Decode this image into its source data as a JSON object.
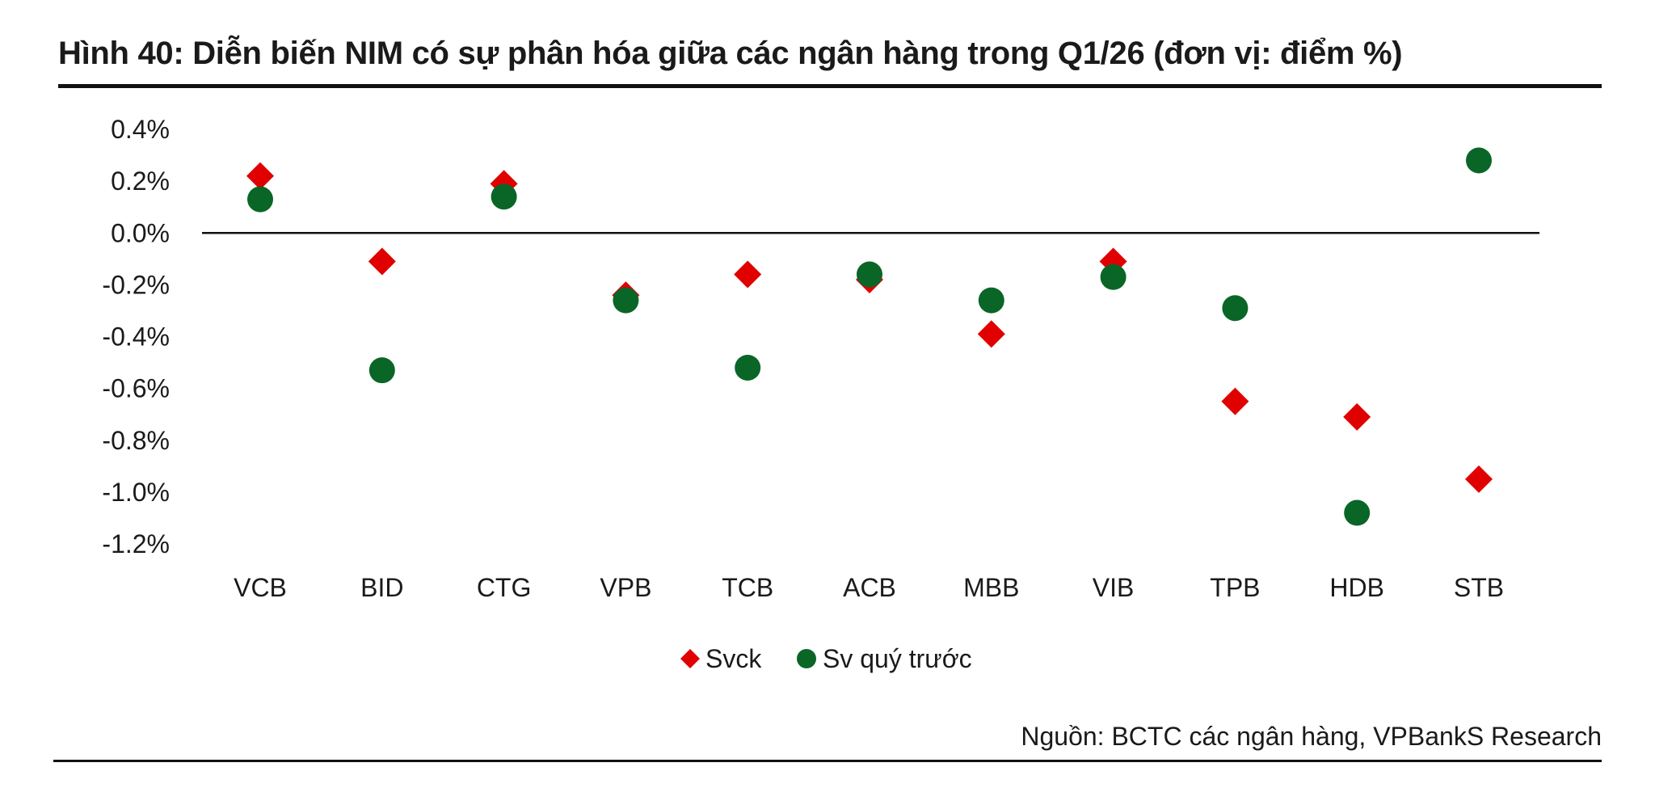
{
  "figure": {
    "title": "Hình 40: Diễn biến NIM có sự phân hóa giữa các ngân hàng trong Q1/26 (đơn vị: điểm %)",
    "source": "Nguồn: BCTC các ngân hàng, VPBankS Research"
  },
  "chart_data": {
    "type": "scatter",
    "title": "Hình 40: Diễn biến NIM có sự phân hóa giữa các ngân hàng trong Q1/26 (đơn vị: điểm %)",
    "xlabel": "",
    "ylabel": "",
    "ylim": [
      -1.2,
      0.4
    ],
    "yticks": [
      0.4,
      0.2,
      0.0,
      -0.2,
      -0.4,
      -0.6,
      -0.8,
      -1.0,
      -1.2
    ],
    "ytick_labels": [
      "0.4%",
      "0.2%",
      "0.0%",
      "-0.2%",
      "-0.4%",
      "-0.6%",
      "-0.8%",
      "-1.0%",
      "-1.2%"
    ],
    "categories": [
      "VCB",
      "BID",
      "CTG",
      "VPB",
      "TCB",
      "ACB",
      "MBB",
      "VIB",
      "TPB",
      "HDB",
      "STB"
    ],
    "grid": false,
    "legend_position": "bottom-center",
    "series": [
      {
        "name": "Svck",
        "marker": "diamond",
        "color": "#e00000",
        "values": [
          0.22,
          -0.11,
          0.19,
          -0.24,
          -0.16,
          -0.18,
          -0.39,
          -0.11,
          -0.65,
          -0.71,
          -0.95
        ]
      },
      {
        "name": "Sv quý trước",
        "marker": "circle",
        "color": "#0a6626",
        "values": [
          0.13,
          -0.53,
          0.14,
          -0.26,
          -0.52,
          -0.16,
          -0.26,
          -0.17,
          -0.29,
          -1.08,
          0.28
        ]
      }
    ]
  }
}
